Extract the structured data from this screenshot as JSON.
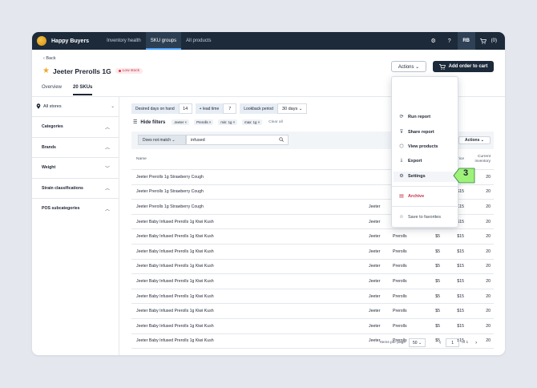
{
  "nav": {
    "brand": "Happy Buyers",
    "links": [
      "Inventory health",
      "SKU groups",
      "All products"
    ],
    "avatar": "RB",
    "cart_count": "(0)"
  },
  "header": {
    "back": "‹ Back",
    "title": "Jeeter Prerolls 1G",
    "badge": "Low stock",
    "actions_btn": "Actions ⌄",
    "add_cart_btn": "Add order to cart"
  },
  "tabs": [
    "Overview",
    "20 SKUs"
  ],
  "sidebar": {
    "store": "All stores",
    "filters": [
      "Categories",
      "Brands",
      "Weight",
      "Strain classifications",
      "POS subcategories"
    ]
  },
  "filterbar": {
    "desired_label": "Desired days on hand",
    "desired_value": "14",
    "lead_label": "+ lead time",
    "lead_value": "7",
    "lookback_label": "Lookback period",
    "lookback_value": "30 days ⌄"
  },
  "hide_filters": {
    "label": "Hide filters",
    "tags": [
      "Jeeter ×",
      "Prerolls ×",
      "min: 1g ×",
      "max: 1g ×"
    ],
    "clear": "Clear all"
  },
  "search": {
    "match": "Does not match ⌄",
    "value": "infused"
  },
  "results_label": "results",
  "table_actions": "Actions ⌄",
  "table": {
    "headers": [
      "Name",
      "Unit cost",
      "Unit price",
      "Current inventory"
    ],
    "rows": [
      {
        "name": "Jeeter Prerolls 1g Strawberry Cough",
        "brand": "",
        "category": "",
        "cost": "$5",
        "price": "$15",
        "inv": "20"
      },
      {
        "name": "Jeeter Prerolls 1g Strawberry Cough",
        "brand": "",
        "category": "",
        "cost": "$5",
        "price": "$15",
        "inv": "20"
      },
      {
        "name": "Jeeter Prerolls 1g Strawberry Cough",
        "brand": "Jeeter",
        "category": "Prerolls",
        "cost": "$5",
        "price": "$15",
        "inv": "20"
      },
      {
        "name": "Jeeter Baby Infused Prerolls 1g Kiwi Kush",
        "brand": "Jeeter",
        "category": "Prerolls",
        "cost": "$5",
        "price": "$15",
        "inv": "20"
      },
      {
        "name": "Jeeter Baby Infused Prerolls 1g Kiwi Kush",
        "brand": "Jeeter",
        "category": "Prerolls",
        "cost": "$5",
        "price": "$15",
        "inv": "20"
      },
      {
        "name": "Jeeter Baby Infused Prerolls 1g Kiwi Kush",
        "brand": "Jeeter",
        "category": "Prerolls",
        "cost": "$5",
        "price": "$15",
        "inv": "20"
      },
      {
        "name": "Jeeter Baby Infused Prerolls 1g Kiwi Kush",
        "brand": "Jeeter",
        "category": "Prerolls",
        "cost": "$5",
        "price": "$15",
        "inv": "20"
      },
      {
        "name": "Jeeter Baby Infused Prerolls 1g Kiwi Kush",
        "brand": "Jeeter",
        "category": "Prerolls",
        "cost": "$5",
        "price": "$15",
        "inv": "20"
      },
      {
        "name": "Jeeter Baby Infused Prerolls 1g Kiwi Kush",
        "brand": "Jeeter",
        "category": "Prerolls",
        "cost": "$5",
        "price": "$15",
        "inv": "20"
      },
      {
        "name": "Jeeter Baby Infused Prerolls 1g Kiwi Kush",
        "brand": "Jeeter",
        "category": "Prerolls",
        "cost": "$5",
        "price": "$15",
        "inv": "20"
      },
      {
        "name": "Jeeter Baby Infused Prerolls 1g Kiwi Kush",
        "brand": "Jeeter",
        "category": "Prerolls",
        "cost": "$5",
        "price": "$15",
        "inv": "20"
      },
      {
        "name": "Jeeter Baby Infused Prerolls 1g Kiwi Kush",
        "brand": "Jeeter",
        "category": "Prerolls",
        "cost": "$5",
        "price": "$15",
        "inv": "20"
      }
    ]
  },
  "pager": {
    "per_page_label": "Items per page",
    "per_page": "50 ⌄",
    "page": "1",
    "of": "of 1"
  },
  "menu": {
    "items": [
      {
        "label": "Run report",
        "icon": "refresh-icon"
      },
      {
        "label": "Share report",
        "icon": "filter-icon"
      },
      {
        "label": "View products",
        "icon": "box-icon"
      },
      {
        "label": "Export",
        "icon": "download-icon"
      },
      {
        "label": "Settings",
        "icon": "gear-icon"
      },
      {
        "label": "Archive",
        "icon": "archive-icon"
      },
      {
        "label": "Save to favorites",
        "icon": "star-icon"
      }
    ]
  },
  "step_marker": "3",
  "colors": {
    "nav_bg": "#1c2a3a",
    "accent": "#4aa3ff",
    "danger": "#c0344a",
    "star": "#f0a92b",
    "step_green": "#9ef27a"
  }
}
